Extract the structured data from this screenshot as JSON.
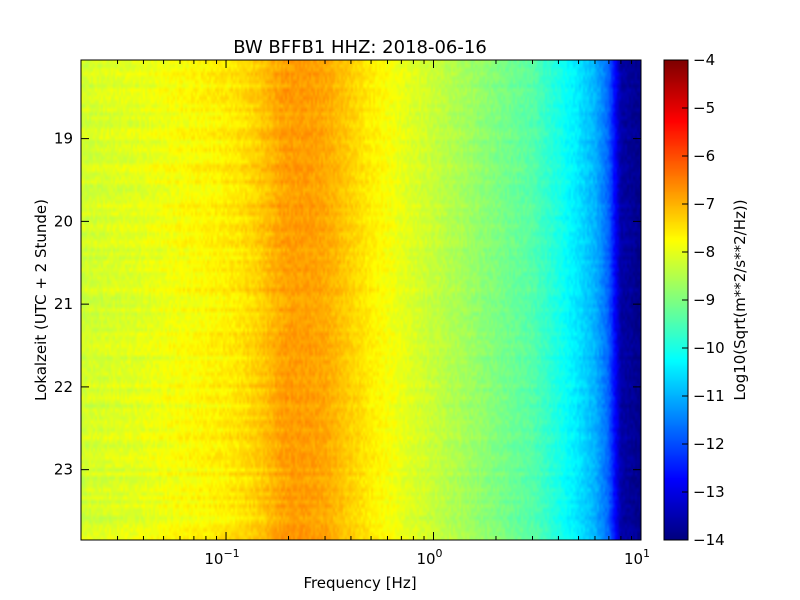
{
  "chart_data": {
    "type": "heatmap",
    "title": "BW BFFB1 HHZ: 2018-06-16",
    "xlabel": "Frequency [Hz]",
    "ylabel": "Lokalzeit (UTC + 2 Stunde)",
    "x_scale": "log",
    "xlim": [
      0.02,
      10
    ],
    "ylim": [
      18.05,
      23.85
    ],
    "y_inverted": true,
    "x_ticks": [
      {
        "value": 0.1,
        "base": "10",
        "exp": "−1"
      },
      {
        "value": 1,
        "base": "10",
        "exp": "0"
      },
      {
        "value": 10,
        "base": "10",
        "exp": "1"
      }
    ],
    "y_ticks": [
      {
        "value": 19,
        "label": "19"
      },
      {
        "value": 20,
        "label": "20"
      },
      {
        "value": 21,
        "label": "21"
      },
      {
        "value": 22,
        "label": "22"
      },
      {
        "value": 23,
        "label": "23"
      }
    ],
    "colorbar": {
      "label": "Log10(Sqrt(m**2/s**2/Hz))",
      "range": [
        -14,
        -4
      ],
      "ticks": [
        "−4",
        "−5",
        "−6",
        "−7",
        "−8",
        "−9",
        "−10",
        "−11",
        "−12",
        "−13",
        "−14"
      ],
      "colormap": "jet"
    },
    "spectrum_profile": {
      "frequency_hz": [
        0.02,
        0.04,
        0.06,
        0.08,
        0.1,
        0.13,
        0.15,
        0.18,
        0.2,
        0.25,
        0.3,
        0.35,
        0.4,
        0.5,
        0.6,
        0.8,
        1.0,
        1.5,
        2.0,
        3.0,
        4.0,
        5.0,
        6.0,
        7.0,
        8.0,
        10.0
      ],
      "log10_amplitude": [
        -8.2,
        -8.0,
        -7.8,
        -7.7,
        -7.6,
        -7.4,
        -7.2,
        -6.9,
        -6.8,
        -6.8,
        -6.9,
        -7.1,
        -7.3,
        -7.6,
        -7.8,
        -8.1,
        -8.3,
        -8.7,
        -9.0,
        -9.4,
        -10.0,
        -10.5,
        -11.0,
        -11.8,
        -13.6,
        -13.9
      ]
    }
  }
}
